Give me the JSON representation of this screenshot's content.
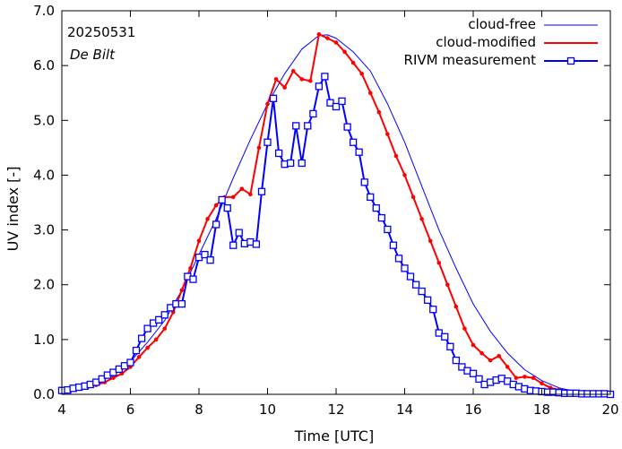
{
  "chart_data": {
    "type": "line",
    "date_label": "20250531",
    "location_label": "De Bilt",
    "xlabel": "Time  [UTC]",
    "ylabel": "UV index  [-]",
    "xlim": [
      4,
      20
    ],
    "ylim": [
      0,
      7
    ],
    "x_ticks": [
      4,
      6,
      8,
      10,
      12,
      14,
      16,
      18,
      20
    ],
    "y_ticks": [
      0.0,
      1.0,
      2.0,
      3.0,
      4.0,
      5.0,
      6.0,
      7.0
    ],
    "legend_position": "top-right",
    "series": [
      {
        "name": "cloud-free",
        "color": "#0000ff",
        "style": "line",
        "x": [
          4.0,
          4.5,
          5.0,
          5.5,
          6.0,
          6.5,
          7.0,
          7.5,
          8.0,
          8.5,
          9.0,
          9.5,
          10.0,
          10.5,
          11.0,
          11.5,
          11.75,
          12.0,
          12.5,
          13.0,
          13.5,
          14.0,
          14.5,
          15.0,
          15.5,
          16.0,
          16.5,
          17.0,
          17.5,
          18.0,
          18.5,
          19.0,
          19.5,
          20.0
        ],
        "y": [
          0.05,
          0.1,
          0.2,
          0.35,
          0.6,
          0.95,
          1.35,
          1.9,
          2.55,
          3.2,
          3.95,
          4.65,
          5.3,
          5.85,
          6.3,
          6.55,
          6.56,
          6.5,
          6.25,
          5.9,
          5.3,
          4.6,
          3.8,
          3.0,
          2.3,
          1.65,
          1.15,
          0.75,
          0.45,
          0.25,
          0.12,
          0.05,
          0.02,
          0.01
        ]
      },
      {
        "name": "cloud-modified",
        "color": "#ff0000",
        "style": "line-dot",
        "x": [
          4.0,
          4.25,
          4.5,
          4.75,
          5.0,
          5.25,
          5.5,
          5.75,
          6.0,
          6.25,
          6.5,
          6.75,
          7.0,
          7.25,
          7.5,
          7.75,
          8.0,
          8.25,
          8.5,
          8.75,
          9.0,
          9.25,
          9.5,
          9.75,
          10.0,
          10.25,
          10.5,
          10.75,
          11.0,
          11.25,
          11.5,
          11.75,
          12.0,
          12.25,
          12.5,
          12.75,
          13.0,
          13.25,
          13.5,
          13.75,
          14.0,
          14.25,
          14.5,
          14.75,
          15.0,
          15.25,
          15.5,
          15.75,
          16.0,
          16.25,
          16.5,
          16.75,
          17.0,
          17.25,
          17.5,
          17.75,
          18.0,
          18.25,
          18.5,
          18.75,
          19.0,
          19.25,
          19.5,
          19.75,
          20.0
        ],
        "y": [
          0.05,
          0.07,
          0.1,
          0.13,
          0.17,
          0.22,
          0.3,
          0.38,
          0.5,
          0.68,
          0.85,
          1.0,
          1.2,
          1.5,
          1.9,
          2.3,
          2.8,
          3.2,
          3.45,
          3.6,
          3.6,
          3.75,
          3.65,
          4.5,
          5.3,
          5.75,
          5.6,
          5.9,
          5.75,
          5.72,
          6.57,
          6.5,
          6.42,
          6.25,
          6.05,
          5.85,
          5.5,
          5.15,
          4.75,
          4.35,
          4.0,
          3.6,
          3.2,
          2.8,
          2.4,
          2.0,
          1.6,
          1.2,
          0.9,
          0.75,
          0.62,
          0.7,
          0.5,
          0.3,
          0.32,
          0.3,
          0.2,
          0.12,
          0.08,
          0.05,
          0.03,
          0.02,
          0.01,
          0.01,
          0.0
        ]
      },
      {
        "name": "RIVM measurement",
        "color": "#0000ff",
        "style": "line-square",
        "x": [
          4.0,
          4.17,
          4.33,
          4.5,
          4.67,
          4.83,
          5.0,
          5.17,
          5.33,
          5.5,
          5.67,
          5.83,
          6.0,
          6.17,
          6.33,
          6.5,
          6.67,
          6.83,
          7.0,
          7.17,
          7.33,
          7.5,
          7.67,
          7.83,
          8.0,
          8.17,
          8.33,
          8.5,
          8.67,
          8.83,
          9.0,
          9.17,
          9.33,
          9.5,
          9.67,
          9.83,
          10.0,
          10.17,
          10.33,
          10.5,
          10.67,
          10.83,
          11.0,
          11.17,
          11.33,
          11.5,
          11.67,
          11.83,
          12.0,
          12.17,
          12.33,
          12.5,
          12.67,
          12.83,
          13.0,
          13.17,
          13.33,
          13.5,
          13.67,
          13.83,
          14.0,
          14.17,
          14.33,
          14.5,
          14.67,
          14.83,
          15.0,
          15.17,
          15.33,
          15.5,
          15.67,
          15.83,
          16.0,
          16.17,
          16.33,
          16.5,
          16.67,
          16.83,
          17.0,
          17.17,
          17.33,
          17.5,
          17.67,
          17.83,
          18.0,
          18.17,
          18.33,
          18.5,
          18.67,
          18.83,
          19.0,
          19.17,
          19.33,
          19.5,
          19.67,
          19.83,
          20.0
        ],
        "y": [
          0.07,
          0.08,
          0.11,
          0.13,
          0.15,
          0.18,
          0.22,
          0.28,
          0.35,
          0.4,
          0.46,
          0.52,
          0.58,
          0.8,
          1.02,
          1.2,
          1.3,
          1.36,
          1.45,
          1.58,
          1.65,
          1.65,
          2.15,
          2.1,
          2.5,
          2.55,
          2.45,
          3.1,
          3.55,
          3.4,
          2.72,
          2.95,
          2.75,
          2.78,
          2.74,
          3.7,
          4.6,
          5.4,
          4.4,
          4.2,
          4.22,
          4.9,
          4.22,
          4.9,
          5.12,
          5.62,
          5.8,
          5.32,
          5.25,
          5.35,
          4.88,
          4.6,
          4.42,
          3.87,
          3.6,
          3.4,
          3.22,
          3.01,
          2.72,
          2.48,
          2.3,
          2.15,
          2.0,
          1.88,
          1.72,
          1.55,
          1.12,
          1.05,
          0.87,
          0.62,
          0.5,
          0.43,
          0.38,
          0.28,
          0.18,
          0.22,
          0.26,
          0.29,
          0.24,
          0.18,
          0.14,
          0.1,
          0.07,
          0.06,
          0.05,
          0.04,
          0.04,
          0.03,
          0.02,
          0.02,
          0.02,
          0.01,
          0.01,
          0.01,
          0.01,
          0.01,
          0.0
        ]
      }
    ]
  }
}
